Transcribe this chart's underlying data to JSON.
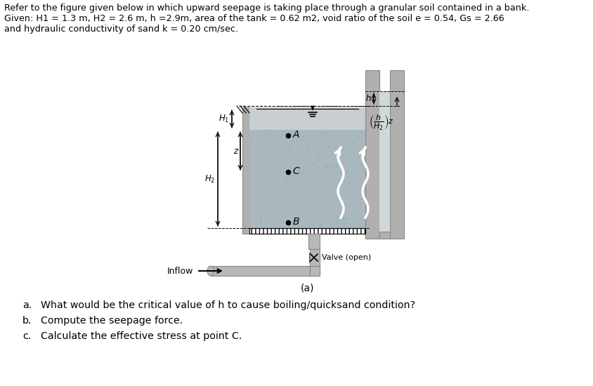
{
  "title_text": "Refer to the figure given below in which upward seepage is taking place through a granular soil contained in a bank.",
  "given_line1": "Given: H1 = 1.3 m, H2 = 2.6 m, h =2.9m, area of the tank = 0.62 m2, void ratio of the soil e = 0.54, Gs = 2.66",
  "given_line2": "and hydraulic conductivity of sand k = 0.20 cm/sec.",
  "fig_label": "(a)",
  "valve_label": "Valve (open)",
  "inflow_label": "Inflow",
  "q_labels": [
    "a.",
    "b.",
    "c."
  ],
  "questions": [
    "What would be the critical value of h to cause boiling/quicksand condition?",
    "Compute the seepage force.",
    "Calculate the effective stress at point C."
  ],
  "bg_color": "#ffffff",
  "soil_gray": "#aab8be",
  "soil_blue": "#6ab4d8",
  "water_gray": "#c8ced2",
  "wall_gray": "#b0b0b0",
  "wall_dark": "#888888",
  "pipe_gray": "#b8b8b8",
  "grate_white": "#ffffff"
}
